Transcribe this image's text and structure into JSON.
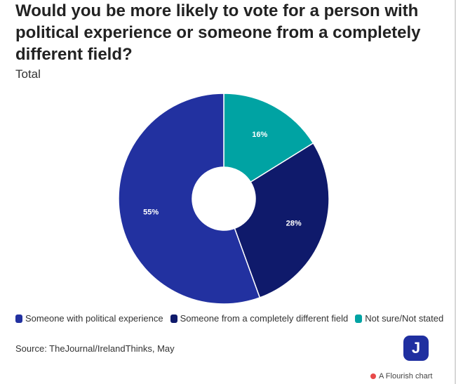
{
  "title": "Would you be more likely to vote for a person with political experience or someone from a completely different field?",
  "subtitle": "Total",
  "source": "Source: TheJournal/IrelandThinks, May",
  "logo_letter": "J",
  "flourish_label": "A Flourish chart",
  "chart_data": {
    "type": "pie",
    "donut": true,
    "title": "Would you be more likely to vote for a person with political experience or someone from a completely different field?",
    "subtitle": "Total",
    "categories": [
      "Someone with political experience",
      "Someone from a completely different field",
      "Not sure/Not stated"
    ],
    "values": [
      55,
      28,
      16
    ],
    "labels": [
      "55%",
      "28%",
      "16%"
    ],
    "colors": [
      "#2231a0",
      "#0f1a6b",
      "#00a3a3"
    ],
    "legend_position": "bottom-left"
  }
}
